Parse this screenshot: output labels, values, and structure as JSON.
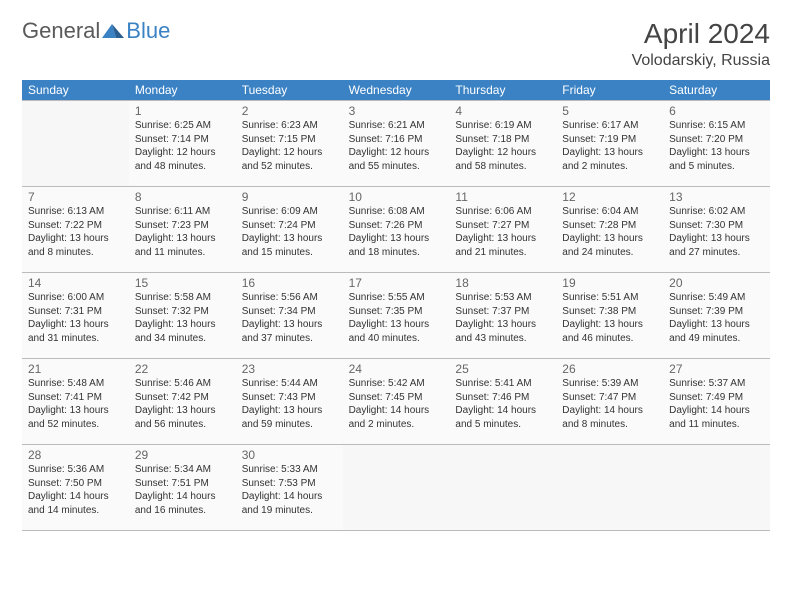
{
  "logo": {
    "textGeneral": "General",
    "textBlue": "Blue"
  },
  "title": "April 2024",
  "location": "Volodarskiy, Russia",
  "colors": {
    "header_bg": "#3a82c4",
    "header_text": "#ffffff",
    "border": "#bbbbbb",
    "cell_bg": "#fafafa",
    "text": "#333333",
    "daynum": "#666666"
  },
  "daysOfWeek": [
    "Sunday",
    "Monday",
    "Tuesday",
    "Wednesday",
    "Thursday",
    "Friday",
    "Saturday"
  ],
  "firstWeekday": 1,
  "daysInMonth": 30,
  "cells": [
    {
      "day": 1,
      "sunrise": "6:25 AM",
      "sunset": "7:14 PM",
      "daylight": "12 hours and 48 minutes."
    },
    {
      "day": 2,
      "sunrise": "6:23 AM",
      "sunset": "7:15 PM",
      "daylight": "12 hours and 52 minutes."
    },
    {
      "day": 3,
      "sunrise": "6:21 AM",
      "sunset": "7:16 PM",
      "daylight": "12 hours and 55 minutes."
    },
    {
      "day": 4,
      "sunrise": "6:19 AM",
      "sunset": "7:18 PM",
      "daylight": "12 hours and 58 minutes."
    },
    {
      "day": 5,
      "sunrise": "6:17 AM",
      "sunset": "7:19 PM",
      "daylight": "13 hours and 2 minutes."
    },
    {
      "day": 6,
      "sunrise": "6:15 AM",
      "sunset": "7:20 PM",
      "daylight": "13 hours and 5 minutes."
    },
    {
      "day": 7,
      "sunrise": "6:13 AM",
      "sunset": "7:22 PM",
      "daylight": "13 hours and 8 minutes."
    },
    {
      "day": 8,
      "sunrise": "6:11 AM",
      "sunset": "7:23 PM",
      "daylight": "13 hours and 11 minutes."
    },
    {
      "day": 9,
      "sunrise": "6:09 AM",
      "sunset": "7:24 PM",
      "daylight": "13 hours and 15 minutes."
    },
    {
      "day": 10,
      "sunrise": "6:08 AM",
      "sunset": "7:26 PM",
      "daylight": "13 hours and 18 minutes."
    },
    {
      "day": 11,
      "sunrise": "6:06 AM",
      "sunset": "7:27 PM",
      "daylight": "13 hours and 21 minutes."
    },
    {
      "day": 12,
      "sunrise": "6:04 AM",
      "sunset": "7:28 PM",
      "daylight": "13 hours and 24 minutes."
    },
    {
      "day": 13,
      "sunrise": "6:02 AM",
      "sunset": "7:30 PM",
      "daylight": "13 hours and 27 minutes."
    },
    {
      "day": 14,
      "sunrise": "6:00 AM",
      "sunset": "7:31 PM",
      "daylight": "13 hours and 31 minutes."
    },
    {
      "day": 15,
      "sunrise": "5:58 AM",
      "sunset": "7:32 PM",
      "daylight": "13 hours and 34 minutes."
    },
    {
      "day": 16,
      "sunrise": "5:56 AM",
      "sunset": "7:34 PM",
      "daylight": "13 hours and 37 minutes."
    },
    {
      "day": 17,
      "sunrise": "5:55 AM",
      "sunset": "7:35 PM",
      "daylight": "13 hours and 40 minutes."
    },
    {
      "day": 18,
      "sunrise": "5:53 AM",
      "sunset": "7:37 PM",
      "daylight": "13 hours and 43 minutes."
    },
    {
      "day": 19,
      "sunrise": "5:51 AM",
      "sunset": "7:38 PM",
      "daylight": "13 hours and 46 minutes."
    },
    {
      "day": 20,
      "sunrise": "5:49 AM",
      "sunset": "7:39 PM",
      "daylight": "13 hours and 49 minutes."
    },
    {
      "day": 21,
      "sunrise": "5:48 AM",
      "sunset": "7:41 PM",
      "daylight": "13 hours and 52 minutes."
    },
    {
      "day": 22,
      "sunrise": "5:46 AM",
      "sunset": "7:42 PM",
      "daylight": "13 hours and 56 minutes."
    },
    {
      "day": 23,
      "sunrise": "5:44 AM",
      "sunset": "7:43 PM",
      "daylight": "13 hours and 59 minutes."
    },
    {
      "day": 24,
      "sunrise": "5:42 AM",
      "sunset": "7:45 PM",
      "daylight": "14 hours and 2 minutes."
    },
    {
      "day": 25,
      "sunrise": "5:41 AM",
      "sunset": "7:46 PM",
      "daylight": "14 hours and 5 minutes."
    },
    {
      "day": 26,
      "sunrise": "5:39 AM",
      "sunset": "7:47 PM",
      "daylight": "14 hours and 8 minutes."
    },
    {
      "day": 27,
      "sunrise": "5:37 AM",
      "sunset": "7:49 PM",
      "daylight": "14 hours and 11 minutes."
    },
    {
      "day": 28,
      "sunrise": "5:36 AM",
      "sunset": "7:50 PM",
      "daylight": "14 hours and 14 minutes."
    },
    {
      "day": 29,
      "sunrise": "5:34 AM",
      "sunset": "7:51 PM",
      "daylight": "14 hours and 16 minutes."
    },
    {
      "day": 30,
      "sunrise": "5:33 AM",
      "sunset": "7:53 PM",
      "daylight": "14 hours and 19 minutes."
    }
  ],
  "labels": {
    "sunrise": "Sunrise:",
    "sunset": "Sunset:",
    "daylight": "Daylight:"
  }
}
